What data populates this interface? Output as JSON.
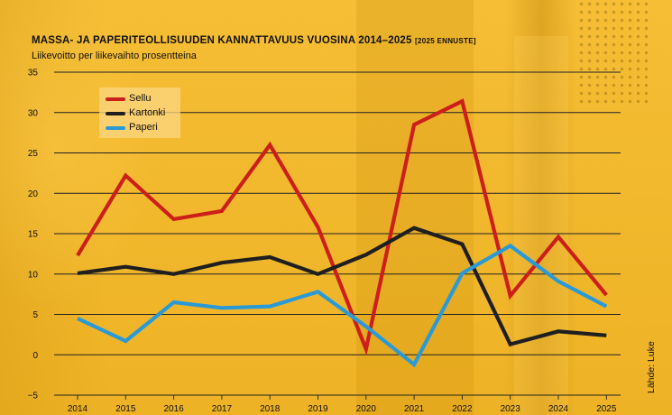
{
  "chart_data": {
    "type": "line",
    "title": "MASSA- JA PAPERITEOLLISUUDEN KANNATTAVUUS VUOSINA 2014–2025",
    "title_note": "[2025 ENNUSTE]",
    "subtitle": "Liikevoitto per liikevaihto prosentteina",
    "source": "Lähde: Luke",
    "x": [
      "2014",
      "2015",
      "2016",
      "2017",
      "2018",
      "2019",
      "2020",
      "2021",
      "2022",
      "2023",
      "2024",
      "2025"
    ],
    "y_ticks": [
      35,
      30,
      25,
      20,
      15,
      10,
      5,
      0,
      -5
    ],
    "ylim": [
      -5,
      35
    ],
    "grid": true,
    "legend_position": "top-left",
    "series": [
      {
        "name": "Sellu",
        "color": "#cc1f1a",
        "values": [
          12.3,
          22.2,
          16.8,
          17.8,
          26.0,
          15.8,
          0.7,
          28.5,
          31.4,
          7.3,
          14.6,
          7.4
        ]
      },
      {
        "name": "Kartonki",
        "color": "#1f1f1f",
        "values": [
          10.1,
          10.9,
          10.0,
          11.4,
          12.1,
          10.0,
          12.4,
          15.7,
          13.7,
          1.3,
          2.9,
          2.4
        ]
      },
      {
        "name": "Paperi",
        "color": "#2a9ad6",
        "values": [
          4.5,
          1.7,
          6.5,
          5.8,
          6.0,
          7.8,
          3.5,
          -1.2,
          10.1,
          13.5,
          9.1,
          6.0
        ]
      }
    ]
  }
}
